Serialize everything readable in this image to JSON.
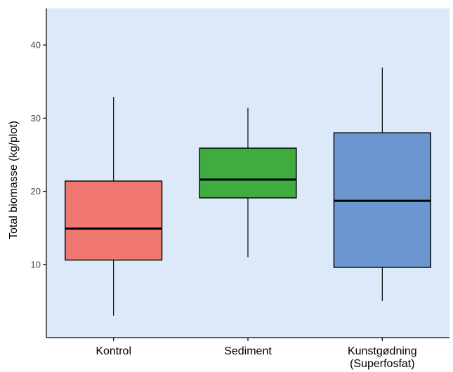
{
  "chart_data": {
    "type": "boxplot",
    "title": "",
    "xlabel": "",
    "ylabel": "Total biomasse (kg/plot)",
    "ylim": [
      0,
      45
    ],
    "yticks": [
      10,
      20,
      30,
      40
    ],
    "grid": false,
    "panel_background": "#dbe9f8",
    "categories": [
      {
        "label_lines": [
          "Kontrol"
        ],
        "min": 3.0,
        "q1": 10.6,
        "median": 14.9,
        "q3": 21.4,
        "max": 32.9,
        "color": "#f07870"
      },
      {
        "label_lines": [
          "Sediment"
        ],
        "min": 11.0,
        "q1": 19.1,
        "median": 21.6,
        "q3": 25.9,
        "max": 31.4,
        "color": "#3fac40"
      },
      {
        "label_lines": [
          "Kunstgødning",
          "(Superfosfat)"
        ],
        "min": 5.0,
        "q1": 9.6,
        "median": 18.7,
        "q3": 28.0,
        "max": 36.9,
        "color": "#6c96cf"
      }
    ]
  }
}
